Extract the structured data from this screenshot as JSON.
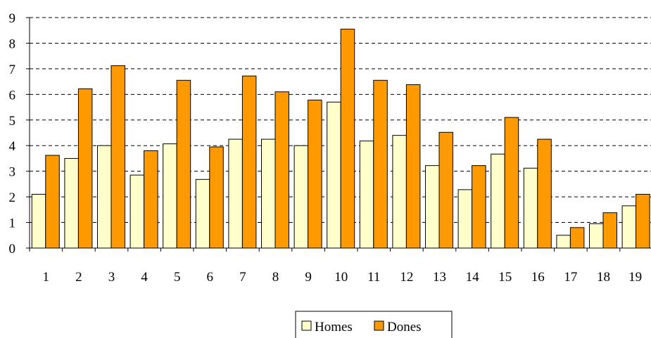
{
  "chart_data": {
    "type": "bar",
    "categories": [
      "1",
      "2",
      "3",
      "4",
      "5",
      "6",
      "7",
      "8",
      "9",
      "10",
      "11",
      "12",
      "13",
      "14",
      "15",
      "16",
      "17",
      "18",
      "19"
    ],
    "series": [
      {
        "name": "Homes",
        "color": "#FFFFCC",
        "values": [
          2.1,
          3.5,
          4.0,
          2.85,
          4.07,
          2.68,
          4.25,
          4.25,
          4.0,
          5.7,
          4.18,
          4.4,
          3.22,
          2.28,
          3.67,
          3.12,
          0.5,
          0.95,
          1.65
        ]
      },
      {
        "name": "Dones",
        "color": "#FF9900",
        "values": [
          3.62,
          6.22,
          7.12,
          3.8,
          6.55,
          3.95,
          6.72,
          6.1,
          5.78,
          8.55,
          6.55,
          6.38,
          4.52,
          3.22,
          5.1,
          4.25,
          0.8,
          1.38,
          2.1
        ]
      }
    ],
    "y_ticks": [
      "0",
      "1",
      "2",
      "3",
      "4",
      "5",
      "6",
      "7",
      "8",
      "9"
    ],
    "ylim": [
      0,
      9
    ],
    "grid": true,
    "legend_position": "bottom-center",
    "title": "",
    "xlabel": "",
    "ylabel": ""
  }
}
